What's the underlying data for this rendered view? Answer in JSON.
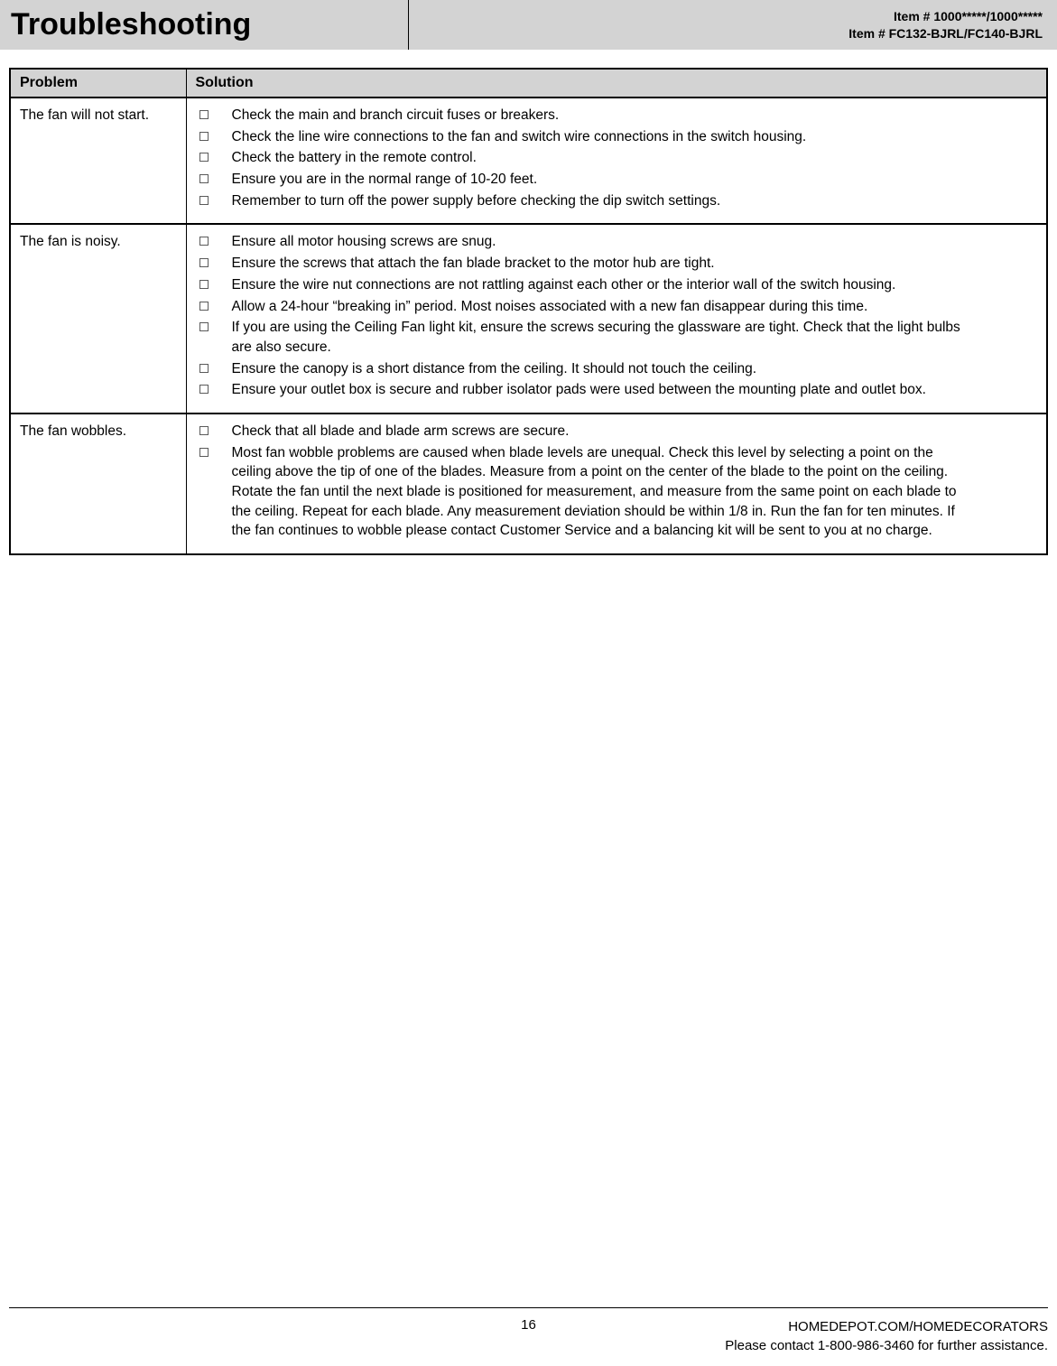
{
  "header": {
    "title": "Troubleshooting",
    "item_line1": "Item # 1000*****/1000*****",
    "item_line2": "Item # FC132-BJRL/FC140-BJRL"
  },
  "table": {
    "columns": {
      "problem": "Problem",
      "solution": "Solution"
    },
    "rows": [
      {
        "problem": "The fan will not start.",
        "solutions": [
          "Check the main and branch circuit fuses or breakers.",
          "Check the line wire connections to the fan and switch wire connections in the switch housing.",
          "Check the battery in the remote control.",
          "Ensure you are in the normal range of 10-20 feet.",
          "Remember to turn off the power supply before checking the dip switch settings."
        ]
      },
      {
        "problem": "The fan is noisy.",
        "solutions": [
          "Ensure all motor housing screws are snug.",
          "Ensure the screws that attach the fan blade bracket to the motor hub are tight.",
          "Ensure the wire nut connections are not rattling against each other or the interior wall  of the switch housing.",
          "Allow a 24-hour “breaking in” period. Most noises associated with a new fan disappear during this time.",
          "If you are using the Ceiling Fan light kit, ensure the screws securing the glassware are tight. Check that the light bulbs are also secure.",
          "Ensure the canopy is a short distance from the ceiling. It should not touch the ceiling.",
          "Ensure your outlet box is secure and rubber isolator pads were used between the mounting plate and outlet box."
        ]
      },
      {
        "problem": "The fan wobbles.",
        "solutions": [
          "Check that all blade and blade arm screws are secure.",
          "Most fan wobble problems are caused when blade levels are unequal. Check this level by selecting a point on the ceiling above the tip of one of the blades. Measure from a point on the center of the blade to the point on the ceiling. Rotate the fan until the next blade is positioned for measurement, and measure from the same point on each blade to the ceiling. Repeat for each blade. Any measurement deviation should be within 1/8 in. Run the fan for ten minutes. If the fan continues to wobble please contact Customer Service and a balancing kit will be sent to you at no charge."
        ]
      }
    ]
  },
  "footer": {
    "page_number": "16",
    "website": "HOMEDEPOT.COM/HOMEDECORATORS",
    "contact": "Please contact 1-800-986-3460 for further assistance."
  },
  "styling": {
    "header_bg": "#d3d3d3",
    "border_color": "#000000",
    "bullet_border": "#5a5a5a",
    "title_fontsize": 34,
    "body_fontsize": 15.5,
    "header_item_fontsize": 14,
    "col_problem_width": 195
  }
}
